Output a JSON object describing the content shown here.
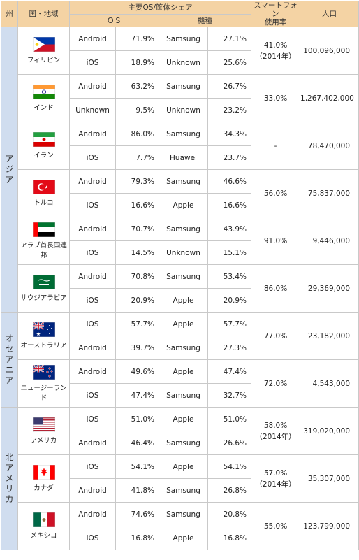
{
  "header": {
    "region": "州",
    "country": "国・地域",
    "share": "主要OS/筐体シェア",
    "os": "ＯＳ",
    "device": "機種",
    "smart_line1": "スマートフォン",
    "smart_line2": "使用率",
    "population": "人口"
  },
  "regions": [
    {
      "name": "アジア"
    },
    {
      "name": "オセアニア"
    },
    {
      "name": "北アメリカ"
    }
  ],
  "countries": [
    {
      "name": "フィリピン",
      "flag_icon": "philippines-flag-icon",
      "smart": "41.0%",
      "smart_note": "（2014年）",
      "population": "100,096,000",
      "rows": [
        {
          "os": "Android",
          "os_pct": "71.9%",
          "device": "Samsung",
          "device_pct": "27.1%"
        },
        {
          "os": "iOS",
          "os_pct": "18.9%",
          "device": "Unknown",
          "device_pct": "25.6%"
        }
      ]
    },
    {
      "name": "インド",
      "flag_icon": "india-flag-icon",
      "smart": "33.0%",
      "smart_note": "",
      "population": "1,267,402,000",
      "rows": [
        {
          "os": "Android",
          "os_pct": "63.2%",
          "device": "Samsung",
          "device_pct": "26.7%"
        },
        {
          "os": "Unknown",
          "os_pct": "9.5%",
          "device": "Unknown",
          "device_pct": "23.2%"
        }
      ]
    },
    {
      "name": "イラン",
      "flag_icon": "iran-flag-icon",
      "smart": "-",
      "smart_note": "",
      "population": "78,470,000",
      "rows": [
        {
          "os": "Android",
          "os_pct": "86.0%",
          "device": "Samsung",
          "device_pct": "34.3%"
        },
        {
          "os": "iOS",
          "os_pct": "7.7%",
          "device": "Huawei",
          "device_pct": "23.7%"
        }
      ]
    },
    {
      "name": "トルコ",
      "flag_icon": "turkey-flag-icon",
      "smart": "56.0%",
      "smart_note": "",
      "population": "75,837,000",
      "rows": [
        {
          "os": "Android",
          "os_pct": "79.3%",
          "device": "Samsung",
          "device_pct": "46.6%"
        },
        {
          "os": "iOS",
          "os_pct": "16.6%",
          "device": "Apple",
          "device_pct": "16.6%"
        }
      ]
    },
    {
      "name": "アラブ首長国連邦",
      "flag_icon": "uae-flag-icon",
      "smart": "91.0%",
      "smart_note": "",
      "population": "9,446,000",
      "rows": [
        {
          "os": "Android",
          "os_pct": "70.7%",
          "device": "Samsung",
          "device_pct": "43.9%"
        },
        {
          "os": "iOS",
          "os_pct": "14.5%",
          "device": "Unknown",
          "device_pct": "15.1%"
        }
      ]
    },
    {
      "name": "サウジアラビア",
      "flag_icon": "saudi-arabia-flag-icon",
      "smart": "86.0%",
      "smart_note": "",
      "population": "29,369,000",
      "rows": [
        {
          "os": "Android",
          "os_pct": "70.8%",
          "device": "Samsung",
          "device_pct": "53.4%"
        },
        {
          "os": "iOS",
          "os_pct": "20.9%",
          "device": "Apple",
          "device_pct": "20.9%"
        }
      ]
    },
    {
      "name": "オーストラリア",
      "flag_icon": "australia-flag-icon",
      "smart": "77.0%",
      "smart_note": "",
      "population": "23,182,000",
      "rows": [
        {
          "os": "iOS",
          "os_pct": "57.7%",
          "device": "Apple",
          "device_pct": "57.7%"
        },
        {
          "os": "Android",
          "os_pct": "39.7%",
          "device": "Samsung",
          "device_pct": "27.3%"
        }
      ]
    },
    {
      "name": "ニュージーランド",
      "flag_icon": "new-zealand-flag-icon",
      "smart": "72.0%",
      "smart_note": "",
      "population": "4,543,000",
      "rows": [
        {
          "os": "Android",
          "os_pct": "49.6%",
          "device": "Apple",
          "device_pct": "47.4%"
        },
        {
          "os": "iOS",
          "os_pct": "47.4%",
          "device": "Samsung",
          "device_pct": "32.7%"
        }
      ]
    },
    {
      "name": "アメリカ",
      "flag_icon": "usa-flag-icon",
      "smart": "58.0%",
      "smart_note": "（2014年）",
      "population": "319,020,000",
      "rows": [
        {
          "os": "iOS",
          "os_pct": "51.0%",
          "device": "Apple",
          "device_pct": "51.0%"
        },
        {
          "os": "Android",
          "os_pct": "46.4%",
          "device": "Samsung",
          "device_pct": "26.6%"
        }
      ]
    },
    {
      "name": "カナダ",
      "flag_icon": "canada-flag-icon",
      "smart": "57.0%",
      "smart_note": "（2014年）",
      "population": "35,307,000",
      "rows": [
        {
          "os": "iOS",
          "os_pct": "54.1%",
          "device": "Apple",
          "device_pct": "54.1%"
        },
        {
          "os": "Android",
          "os_pct": "41.8%",
          "device": "Samsung",
          "device_pct": "26.8%"
        }
      ]
    },
    {
      "name": "メキシコ",
      "flag_icon": "mexico-flag-icon",
      "smart": "55.0%",
      "smart_note": "",
      "population": "123,799,000",
      "rows": [
        {
          "os": "Android",
          "os_pct": "74.6%",
          "device": "Samsung",
          "device_pct": "20.8%"
        },
        {
          "os": "iOS",
          "os_pct": "16.8%",
          "device": "Apple",
          "device_pct": "16.8%"
        }
      ]
    }
  ]
}
